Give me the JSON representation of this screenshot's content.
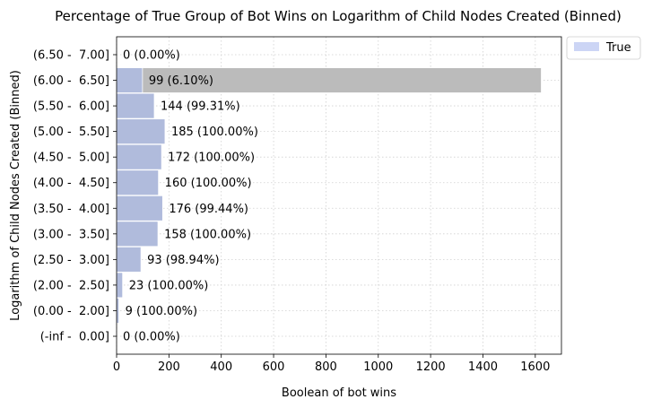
{
  "chart_data": {
    "type": "bar",
    "orientation": "horizontal",
    "title": "Percentage of True Group of Bot Wins on Logarithm of Child Nodes Created (Binned)",
    "xlabel": "Boolean of bot wins",
    "ylabel": "Logarithm of Child Nodes Created (Binned)",
    "xlim": [
      0,
      1700
    ],
    "xticks": [
      0,
      200,
      400,
      600,
      800,
      1000,
      1200,
      1400,
      1600
    ],
    "grid": true,
    "legend_position": "top-right outside",
    "categories": [
      "(-inf -  0.00]",
      "(0.00 -  2.00]",
      "(2.00 -  2.50]",
      "(2.50 -  3.00]",
      "(3.00 -  3.50]",
      "(3.50 -  4.00]",
      "(4.00 -  4.50]",
      "(4.50 -  5.00]",
      "(5.00 -  5.50]",
      "(5.50 -  6.00]",
      "(6.00 -  6.50]",
      "(6.50 -  7.00]"
    ],
    "series": [
      {
        "name": "True",
        "color": "#b0bbdc",
        "legend_color": "#ccd5f5",
        "values": [
          0,
          9,
          23,
          93,
          158,
          176,
          160,
          172,
          185,
          144,
          99,
          0
        ]
      }
    ],
    "totals": {
      "color": "#bbbbbb",
      "values": [
        0,
        9,
        23,
        94,
        158,
        177,
        160,
        172,
        185,
        145,
        1623,
        0
      ]
    },
    "data_labels": [
      "0 (0.00%)",
      "9 (100.00%)",
      "23 (100.00%)",
      "93 (98.94%)",
      "158 (100.00%)",
      "176 (99.44%)",
      "160 (100.00%)",
      "172 (100.00%)",
      "185 (100.00%)",
      "144 (99.31%)",
      "99 (6.10%)",
      "0 (0.00%)"
    ]
  }
}
